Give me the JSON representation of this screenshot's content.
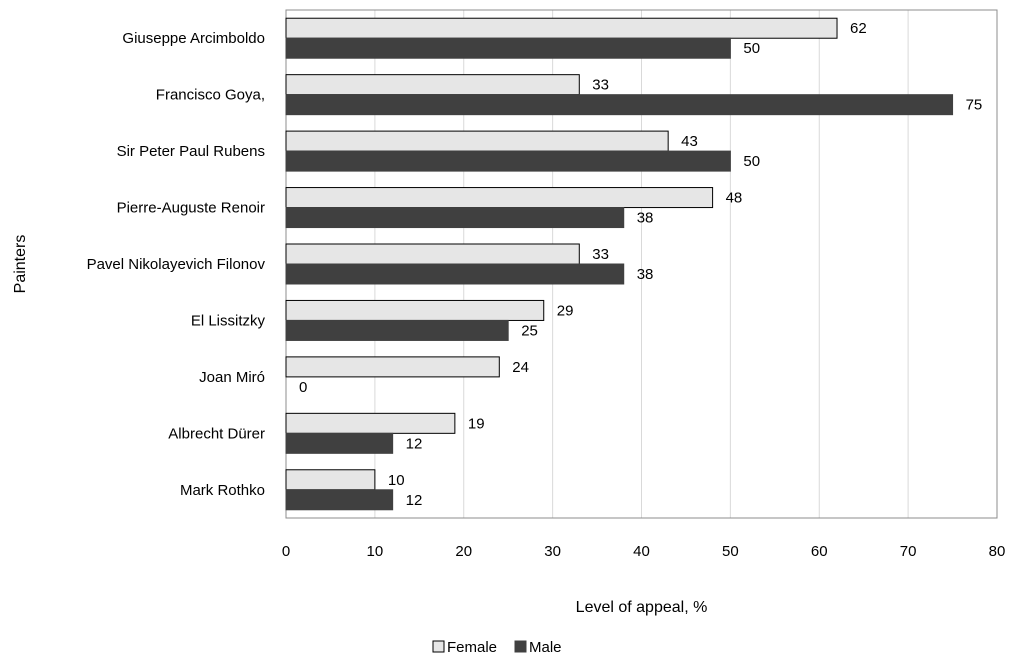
{
  "chart_data": {
    "type": "bar",
    "orientation": "horizontal",
    "title": "",
    "xlabel": "Level of appeal, %",
    "ylabel": "Painters",
    "categories": [
      "Giuseppe Arcimboldo",
      "Francisco Goya,",
      "Sir Peter Paul Rubens",
      "Pierre-Auguste Renoir",
      "Pavel Nikolayevich Filonov",
      "El Lissitzky",
      "Joan Miró",
      "Albrecht Dürer",
      "Mark Rothko"
    ],
    "series": [
      {
        "name": "Female",
        "color": "#e6e6e6",
        "stroke": "#000000",
        "values": [
          62,
          33,
          43,
          48,
          33,
          29,
          24,
          19,
          10
        ]
      },
      {
        "name": "Male",
        "color": "#404040",
        "stroke": "#404040",
        "values": [
          50,
          75,
          50,
          38,
          38,
          25,
          0,
          12,
          12
        ]
      }
    ],
    "xlim": [
      0,
      80
    ],
    "xticks": [
      0,
      10,
      20,
      30,
      40,
      50,
      60,
      70,
      80
    ],
    "grid": "vertical",
    "legend": "bottom",
    "data_labels": true
  }
}
